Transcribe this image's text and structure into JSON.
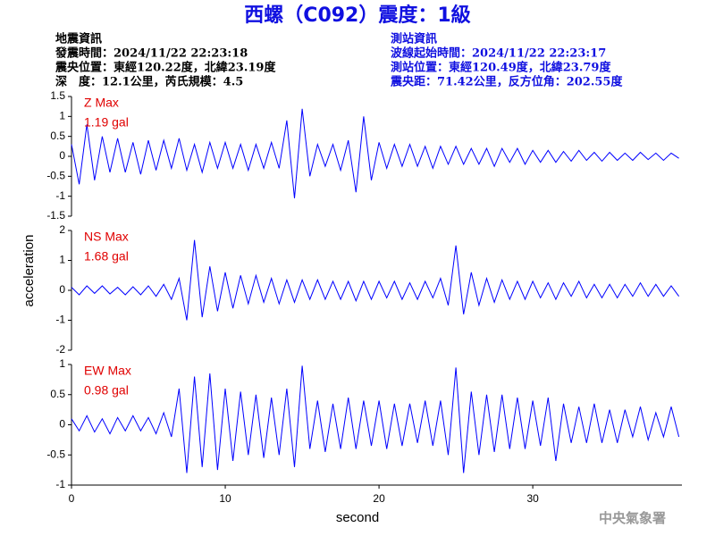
{
  "header": {
    "title": "西螺（C092）震度：1級",
    "left": [
      "地震資訊",
      "發震時間：2024/11/22 22:23:18",
      "震央位置：東經120.22度，北緯23.19度",
      "深　度：12.1公里，芮氏規模：4.5"
    ],
    "right": [
      "測站資訊",
      "波線起始時間：2024/11/22 22:23:17",
      "測站位置：東經120.49度，北緯23.79度",
      "震央距：71.42公里，反方位角：202.55度"
    ]
  },
  "axes": {
    "xlabel": "second",
    "ylabel": "acceleration"
  },
  "footer": "中央氣象署",
  "chart_data": [
    {
      "type": "line",
      "annotations": [
        "Z Max",
        "1.19 gal"
      ],
      "color": "#0000ff",
      "xlim": [
        0,
        39.7
      ],
      "ylim": [
        -1.5,
        1.5
      ],
      "yticks": [
        -1.5,
        -1,
        -0.5,
        0,
        0.5,
        1,
        1.5
      ],
      "x": [
        0,
        0.5,
        1,
        1.5,
        2,
        2.5,
        3,
        3.5,
        4,
        4.5,
        5,
        5.5,
        6,
        6.5,
        7,
        7.5,
        8,
        8.5,
        9,
        9.5,
        10,
        10.5,
        11,
        11.5,
        12,
        12.5,
        13,
        13.5,
        14,
        14.5,
        15,
        15.5,
        16,
        16.5,
        17,
        17.5,
        18,
        18.5,
        19,
        19.5,
        20,
        20.5,
        21,
        21.5,
        22,
        22.5,
        23,
        23.5,
        24,
        24.5,
        25,
        25.5,
        26,
        26.5,
        27,
        27.5,
        28,
        28.5,
        29,
        29.5,
        30,
        30.5,
        31,
        31.5,
        32,
        32.5,
        33,
        33.5,
        34,
        34.5,
        35,
        35.5,
        36,
        36.5,
        37,
        37.5,
        38,
        38.5,
        39,
        39.5
      ],
      "values": [
        0.3,
        -0.7,
        0.8,
        -0.6,
        0.5,
        -0.4,
        0.45,
        -0.4,
        0.35,
        -0.45,
        0.4,
        -0.35,
        0.4,
        -0.3,
        0.45,
        -0.35,
        0.3,
        -0.4,
        0.35,
        -0.3,
        0.35,
        -0.3,
        0.3,
        -0.35,
        0.3,
        -0.3,
        0.35,
        -0.3,
        0.9,
        -1.05,
        1.19,
        -0.5,
        0.3,
        -0.25,
        0.3,
        -0.35,
        0.4,
        -0.9,
        1.0,
        -0.6,
        0.35,
        -0.3,
        0.3,
        -0.25,
        0.3,
        -0.25,
        0.25,
        -0.3,
        0.25,
        -0.2,
        0.25,
        -0.2,
        0.2,
        -0.2,
        0.2,
        -0.25,
        0.2,
        -0.15,
        0.2,
        -0.2,
        0.15,
        -0.15,
        0.15,
        -0.15,
        0.12,
        -0.12,
        0.15,
        -0.1,
        0.1,
        -0.12,
        0.1,
        -0.1,
        0.08,
        -0.1,
        0.1,
        -0.08,
        0.08,
        -0.1,
        0.08,
        -0.05
      ]
    },
    {
      "type": "line",
      "annotations": [
        "NS Max",
        "1.68 gal"
      ],
      "color": "#0000ff",
      "xlim": [
        0,
        39.7
      ],
      "ylim": [
        -2,
        2
      ],
      "yticks": [
        -2,
        -1,
        0,
        1,
        2
      ],
      "x": [
        0,
        0.5,
        1,
        1.5,
        2,
        2.5,
        3,
        3.5,
        4,
        4.5,
        5,
        5.5,
        6,
        6.5,
        7,
        7.5,
        8,
        8.5,
        9,
        9.5,
        10,
        10.5,
        11,
        11.5,
        12,
        12.5,
        13,
        13.5,
        14,
        14.5,
        15,
        15.5,
        16,
        16.5,
        17,
        17.5,
        18,
        18.5,
        19,
        19.5,
        20,
        20.5,
        21,
        21.5,
        22,
        22.5,
        23,
        23.5,
        24,
        24.5,
        25,
        25.5,
        26,
        26.5,
        27,
        27.5,
        28,
        28.5,
        29,
        29.5,
        30,
        30.5,
        31,
        31.5,
        32,
        32.5,
        33,
        33.5,
        34,
        34.5,
        35,
        35.5,
        36,
        36.5,
        37,
        37.5,
        38,
        38.5,
        39,
        39.5
      ],
      "values": [
        0.1,
        -0.15,
        0.15,
        -0.1,
        0.15,
        -0.12,
        0.1,
        -0.15,
        0.12,
        -0.15,
        0.15,
        -0.2,
        0.2,
        -0.3,
        0.4,
        -1.0,
        1.68,
        -0.9,
        0.8,
        -0.7,
        0.6,
        -0.6,
        0.5,
        -0.45,
        0.5,
        -0.4,
        0.4,
        -0.45,
        0.35,
        -0.4,
        0.35,
        -0.3,
        0.35,
        -0.3,
        0.3,
        -0.3,
        0.3,
        -0.35,
        0.3,
        -0.3,
        0.3,
        -0.25,
        0.3,
        -0.3,
        0.25,
        -0.3,
        0.3,
        -0.25,
        0.4,
        -0.5,
        1.5,
        -0.8,
        0.6,
        -0.5,
        0.4,
        -0.4,
        0.35,
        -0.3,
        0.3,
        -0.3,
        0.3,
        -0.25,
        0.25,
        -0.3,
        0.25,
        -0.2,
        0.3,
        -0.25,
        0.2,
        -0.25,
        0.2,
        -0.25,
        0.2,
        -0.2,
        0.25,
        -0.2,
        0.2,
        -0.2,
        0.15,
        -0.2
      ]
    },
    {
      "type": "line",
      "annotations": [
        "EW Max",
        "0.98 gal"
      ],
      "color": "#0000ff",
      "xlim": [
        0,
        39.7
      ],
      "xticks": [
        0,
        10,
        20,
        30
      ],
      "ylim": [
        -1,
        1
      ],
      "yticks": [
        -1,
        -0.5,
        0,
        0.5,
        1
      ],
      "x": [
        0,
        0.5,
        1,
        1.5,
        2,
        2.5,
        3,
        3.5,
        4,
        4.5,
        5,
        5.5,
        6,
        6.5,
        7,
        7.5,
        8,
        8.5,
        9,
        9.5,
        10,
        10.5,
        11,
        11.5,
        12,
        12.5,
        13,
        13.5,
        14,
        14.5,
        15,
        15.5,
        16,
        16.5,
        17,
        17.5,
        18,
        18.5,
        19,
        19.5,
        20,
        20.5,
        21,
        21.5,
        22,
        22.5,
        23,
        23.5,
        24,
        24.5,
        25,
        25.5,
        26,
        26.5,
        27,
        27.5,
        28,
        28.5,
        29,
        29.5,
        30,
        30.5,
        31,
        31.5,
        32,
        32.5,
        33,
        33.5,
        34,
        34.5,
        35,
        35.5,
        36,
        36.5,
        37,
        37.5,
        38,
        38.5,
        39,
        39.5
      ],
      "values": [
        0.1,
        -0.1,
        0.15,
        -0.12,
        0.1,
        -0.15,
        0.12,
        -0.1,
        0.15,
        -0.1,
        0.12,
        -0.15,
        0.2,
        -0.2,
        0.6,
        -0.8,
        0.8,
        -0.7,
        0.85,
        -0.75,
        0.6,
        -0.6,
        0.55,
        -0.5,
        0.5,
        -0.55,
        0.45,
        -0.5,
        0.6,
        -0.7,
        0.98,
        -0.4,
        0.4,
        -0.45,
        0.35,
        -0.4,
        0.45,
        -0.4,
        0.4,
        -0.35,
        0.4,
        -0.4,
        0.35,
        -0.35,
        0.35,
        -0.3,
        0.4,
        -0.35,
        0.4,
        -0.5,
        0.95,
        -0.8,
        0.55,
        -0.5,
        0.5,
        -0.45,
        0.5,
        -0.4,
        0.45,
        -0.4,
        0.4,
        -0.35,
        0.45,
        -0.6,
        0.35,
        -0.3,
        0.3,
        -0.3,
        0.35,
        -0.3,
        0.25,
        -0.3,
        0.25,
        -0.2,
        0.3,
        -0.25,
        0.2,
        -0.2,
        0.3,
        -0.2
      ]
    }
  ]
}
